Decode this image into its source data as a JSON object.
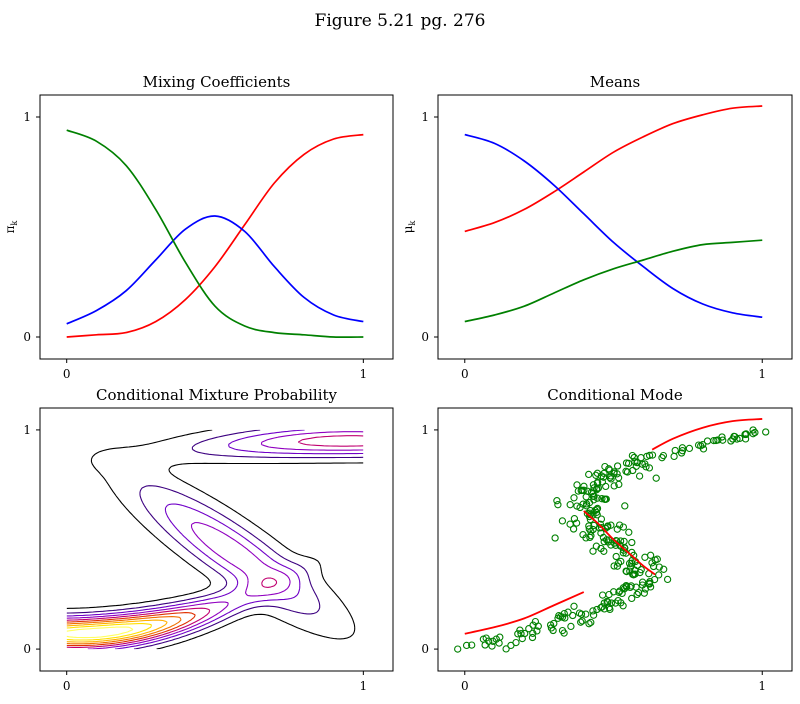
{
  "figure": {
    "title": "Figure 5.21 pg. 276"
  },
  "chart_data": [
    {
      "id": "mixing",
      "type": "line",
      "title": "Mixing Coefficients",
      "xlabel": "",
      "ylabel": "π_k",
      "xlim": [
        -0.09,
        1.1
      ],
      "ylim": [
        -0.1,
        1.1
      ],
      "xticks": [
        0,
        1
      ],
      "yticks": [
        0,
        1
      ],
      "grid": false,
      "x": [
        0.0,
        0.1,
        0.2,
        0.3,
        0.4,
        0.5,
        0.6,
        0.7,
        0.8,
        0.9,
        1.0
      ],
      "series": [
        {
          "color": "#ff0000",
          "values": [
            0.0,
            0.01,
            0.02,
            0.07,
            0.17,
            0.32,
            0.51,
            0.7,
            0.83,
            0.9,
            0.92
          ]
        },
        {
          "color": "#0000ff",
          "values": [
            0.06,
            0.12,
            0.21,
            0.35,
            0.49,
            0.55,
            0.48,
            0.32,
            0.18,
            0.1,
            0.07
          ]
        },
        {
          "color": "#008000",
          "values": [
            0.94,
            0.89,
            0.78,
            0.58,
            0.34,
            0.14,
            0.05,
            0.02,
            0.01,
            0.0,
            0.0
          ]
        }
      ]
    },
    {
      "id": "means",
      "type": "line",
      "title": "Means",
      "xlabel": "",
      "ylabel": "μ_k",
      "xlim": [
        -0.09,
        1.1
      ],
      "ylim": [
        -0.1,
        1.1
      ],
      "xticks": [
        0,
        1
      ],
      "yticks": [
        0,
        1
      ],
      "grid": false,
      "x": [
        0.0,
        0.1,
        0.2,
        0.3,
        0.4,
        0.5,
        0.6,
        0.7,
        0.8,
        0.9,
        1.0
      ],
      "series": [
        {
          "color": "#ff0000",
          "values": [
            0.48,
            0.52,
            0.58,
            0.66,
            0.75,
            0.84,
            0.91,
            0.97,
            1.01,
            1.04,
            1.05
          ]
        },
        {
          "color": "#0000ff",
          "values": [
            0.92,
            0.88,
            0.8,
            0.69,
            0.56,
            0.43,
            0.32,
            0.22,
            0.15,
            0.11,
            0.09
          ]
        },
        {
          "color": "#008000",
          "values": [
            0.07,
            0.1,
            0.14,
            0.2,
            0.26,
            0.31,
            0.35,
            0.39,
            0.42,
            0.43,
            0.44
          ]
        }
      ]
    },
    {
      "id": "conditional",
      "type": "contour",
      "title": "Conditional Mixture Probability",
      "xlabel": "",
      "ylabel": "",
      "xlim": [
        -0.09,
        1.1
      ],
      "ylim": [
        -0.1,
        1.1
      ],
      "xticks": [
        0,
        1
      ],
      "yticks": [
        0,
        1
      ],
      "grid": false,
      "levels": 10,
      "colormap": [
        "#000000",
        "#3c0080",
        "#7000c8",
        "#9000c0",
        "#c00070",
        "#e03000",
        "#f07000",
        "#ffb000",
        "#ffe000",
        "#ffff60"
      ]
    },
    {
      "id": "mode",
      "type": "scatter",
      "title": "Conditional Mode",
      "xlabel": "",
      "ylabel": "",
      "xlim": [
        -0.09,
        1.1
      ],
      "ylim": [
        -0.1,
        1.1
      ],
      "xticks": [
        0,
        1
      ],
      "yticks": [
        0,
        1
      ],
      "grid": false,
      "point_color": "#008000",
      "mode_color": "#ff0000",
      "mode_segments": [
        {
          "x": [
            0.0,
            0.1,
            0.2,
            0.3,
            0.4
          ],
          "y": [
            0.07,
            0.1,
            0.14,
            0.2,
            0.26
          ]
        },
        {
          "x": [
            0.4,
            0.45,
            0.5,
            0.55,
            0.6,
            0.64
          ],
          "y": [
            0.63,
            0.57,
            0.5,
            0.44,
            0.38,
            0.34
          ]
        },
        {
          "x": [
            0.63,
            0.7,
            0.8,
            0.9,
            1.0
          ],
          "y": [
            0.91,
            0.96,
            1.01,
            1.04,
            1.05
          ]
        }
      ]
    }
  ]
}
